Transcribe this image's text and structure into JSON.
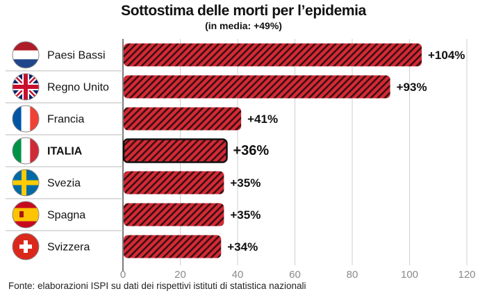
{
  "chart_data": {
    "type": "bar",
    "orientation": "horizontal",
    "title": "Sottostima delle morti per l’epidemia",
    "subtitle": "(in media: +49%)",
    "categories": [
      "Paesi Bassi",
      "Regno Unito",
      "Francia",
      "ITALIA",
      "Svezia",
      "Spagna",
      "Svizzera"
    ],
    "values": [
      104,
      93,
      41,
      36,
      35,
      35,
      34
    ],
    "data_labels": [
      "+104%",
      "+93%",
      "+41%",
      "+36%",
      "+35%",
      "+35%",
      "+34%"
    ],
    "highlight": "ITALIA",
    "xlim": [
      0,
      120
    ],
    "xticks": [
      0,
      20,
      40,
      60,
      80,
      100,
      120
    ],
    "xlabel": "",
    "ylabel": "",
    "grid": true,
    "legend": "none",
    "flags": [
      "flag-netherlands-icon",
      "flag-united-kingdom-icon",
      "flag-france-icon",
      "flag-italy-icon",
      "flag-sweden-icon",
      "flag-spain-icon",
      "flag-switzerland-icon"
    ],
    "colors": {
      "bar": "#d42a35",
      "hatch": "#3a0f12",
      "highlight_outline": "#111111",
      "grid": "#cfcfcf"
    }
  },
  "source": "Fonte: elaborazioni ISPI su dati dei rispettivi istituti di statistica nazionali"
}
